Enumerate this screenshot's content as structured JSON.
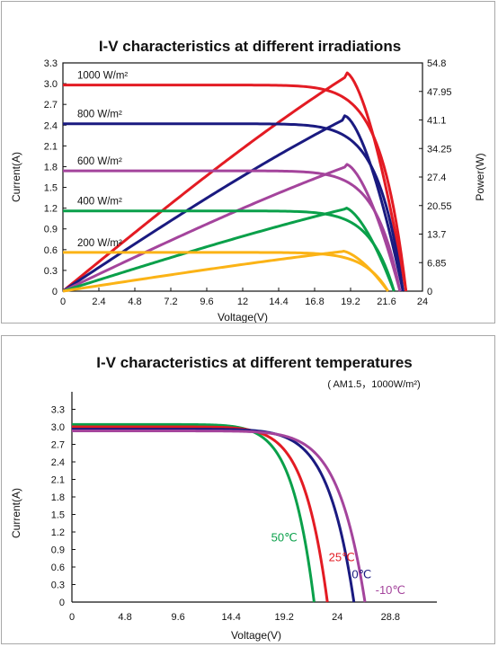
{
  "chart_data": [
    {
      "type": "line",
      "title": "I-V characteristics at different irradiations",
      "xlabel": "Voltage(V)",
      "ylabel": "Current(A)",
      "y2label": "Power(W)",
      "xlim": [
        0,
        24
      ],
      "ylim": [
        0,
        3.3
      ],
      "y2lim": [
        0,
        54.8
      ],
      "x_ticks": [
        "0",
        "2.4",
        "4.8",
        "7.2",
        "9.6",
        "12",
        "14.4",
        "16.8",
        "19.2",
        "21.6",
        "24"
      ],
      "y_ticks": [
        "0",
        "0.3",
        "0.6",
        "0.9",
        "1.2",
        "1.5",
        "1.8",
        "2.1",
        "2.4",
        "2.7",
        "3.0",
        "3.3"
      ],
      "y2_ticks": [
        "0",
        "6.85",
        "13.7",
        "20.55",
        "27.4",
        "34.25",
        "41.1",
        "47.95",
        "54.8"
      ],
      "grid": false,
      "series": [
        {
          "name": "1000 W/m²",
          "color": "#e31b23",
          "isc": 2.98,
          "voc": 22.9,
          "imp": 2.73,
          "vmp": 18.9,
          "pmax": 51.5
        },
        {
          "name": "800 W/m²",
          "color": "#1a1a80",
          "isc": 2.42,
          "voc": 22.7,
          "imp": 2.19,
          "vmp": 18.8,
          "pmax": 41.3
        },
        {
          "name": "600 W/m²",
          "color": "#a4449c",
          "isc": 1.74,
          "voc": 22.5,
          "imp": 1.58,
          "vmp": 18.9,
          "pmax": 29.9
        },
        {
          "name": "400 W/m²",
          "color": "#0aa04a",
          "isc": 1.16,
          "voc": 22.1,
          "imp": 1.05,
          "vmp": 18.8,
          "pmax": 19.7
        },
        {
          "name": "200 W/m²",
          "color": "#fbb316",
          "isc": 0.56,
          "voc": 21.7,
          "imp": 0.51,
          "vmp": 18.6,
          "pmax": 9.5
        }
      ]
    },
    {
      "type": "line",
      "title": "I-V characteristics at different temperatures",
      "subtitle": "( AM1.5，1000W/m²)",
      "xlabel": "Voltage(V)",
      "ylabel": "Current(A)",
      "xlim": [
        0,
        33
      ],
      "ylim": [
        0,
        3.6
      ],
      "x_ticks": [
        "0",
        "4.8",
        "9.6",
        "14.4",
        "19.2",
        "24",
        "28.8"
      ],
      "y_ticks": [
        "0",
        "0.3",
        "0.6",
        "0.9",
        "1.2",
        "1.5",
        "1.8",
        "2.1",
        "2.4",
        "2.7",
        "3.0",
        "3.3"
      ],
      "grid": false,
      "series": [
        {
          "name": "50℃",
          "color": "#0aa04a",
          "isc": 3.04,
          "voc": 21.9
        },
        {
          "name": "25℃",
          "color": "#e31b23",
          "isc": 3.0,
          "voc": 23.1
        },
        {
          "name": "0℃",
          "color": "#1a1a80",
          "isc": 2.96,
          "voc": 25.5
        },
        {
          "name": "-10℃",
          "color": "#a4449c",
          "isc": 2.93,
          "voc": 26.5
        }
      ]
    }
  ]
}
